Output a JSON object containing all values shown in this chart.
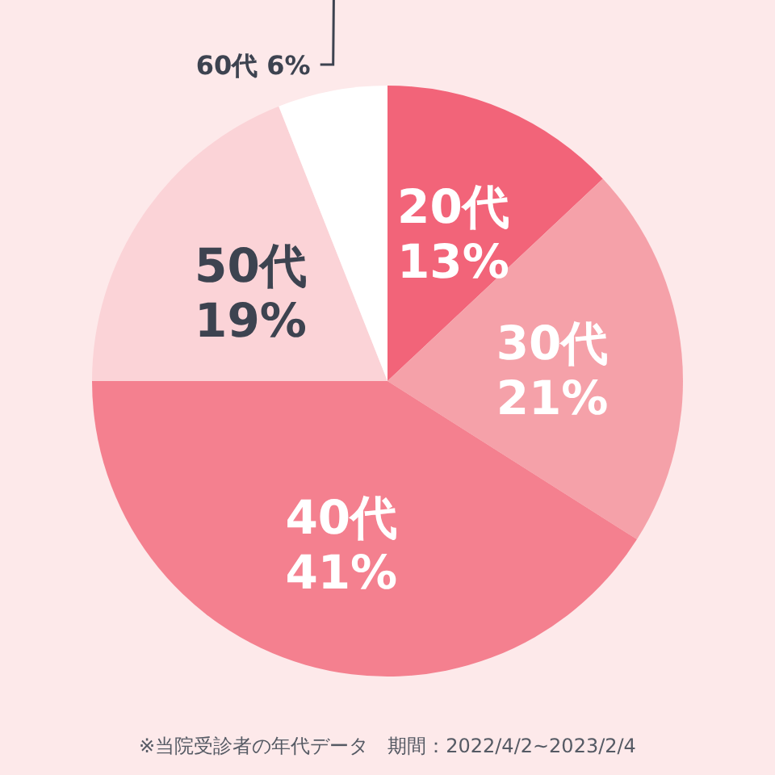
{
  "chart_data": {
    "type": "pie",
    "categories": [
      "20代",
      "30代",
      "40代",
      "50代",
      "60代"
    ],
    "values": [
      13,
      21,
      41,
      19,
      6
    ],
    "value_labels": [
      "13%",
      "21%",
      "41%",
      "19%",
      "6%"
    ],
    "colors": [
      "#f26479",
      "#f5a1a9",
      "#f4808f",
      "#fbd3d7",
      "#ffffff"
    ],
    "annotations": [
      "※当院受診者の年代データ　期間：2022/4/2~2023/2/4"
    ]
  }
}
